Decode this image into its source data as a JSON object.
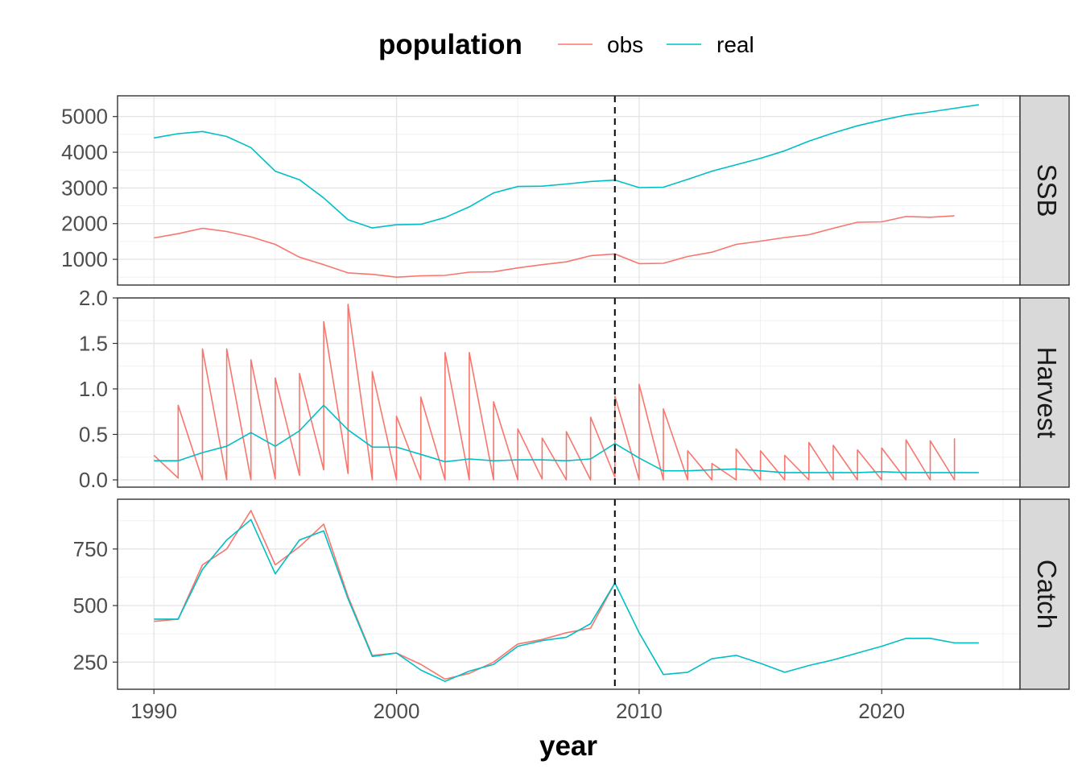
{
  "legend": {
    "title": "population",
    "entries": [
      {
        "label": "obs",
        "color": "#F8766D"
      },
      {
        "label": "real",
        "color": "#00BFC4"
      }
    ],
    "placement": "top"
  },
  "chart_data": {
    "type": "line",
    "xlabel": "year",
    "xlim": [
      1988.5,
      2025.7
    ],
    "x_ticks": [
      1990,
      2000,
      2010,
      2020
    ],
    "x_tick_labels": [
      "1990",
      "2000",
      "2010",
      "2020"
    ],
    "vline_x": 2009,
    "grid": true,
    "facets": [
      {
        "name": "SSB",
        "ylim": [
          280,
          5580
        ],
        "y_ticks": [
          1000,
          2000,
          3000,
          4000,
          5000
        ],
        "y_tick_labels": [
          "1000",
          "2000",
          "3000",
          "4000",
          "5000"
        ],
        "series": [
          {
            "name": "obs",
            "x": [
              1990,
              1991,
              1992,
              1993,
              1994,
              1995,
              1996,
              1997,
              1998,
              1999,
              2000,
              2001,
              2002,
              2003,
              2004,
              2005,
              2006,
              2007,
              2008,
              2009,
              2010,
              2011,
              2012,
              2013,
              2014,
              2015,
              2016,
              2017,
              2018,
              2019,
              2020,
              2021,
              2022,
              2023
            ],
            "y": [
              1600,
              1720,
              1870,
              1780,
              1630,
              1420,
              1060,
              850,
              620,
              580,
              500,
              540,
              550,
              640,
              650,
              760,
              850,
              930,
              1100,
              1150,
              880,
              890,
              1080,
              1200,
              1420,
              1510,
              1610,
              1690,
              1870,
              2040,
              2050,
              2200,
              2180,
              2220
            ]
          },
          {
            "name": "real",
            "x": [
              1990,
              1991,
              1992,
              1993,
              1994,
              1995,
              1996,
              1997,
              1998,
              1999,
              2000,
              2001,
              2002,
              2003,
              2004,
              2005,
              2006,
              2007,
              2008,
              2009,
              2010,
              2011,
              2012,
              2013,
              2014,
              2015,
              2016,
              2017,
              2018,
              2019,
              2020,
              2021,
              2022,
              2023,
              2024
            ],
            "y": [
              4400,
              4520,
              4580,
              4440,
              4130,
              3470,
              3230,
              2720,
              2110,
              1880,
              1970,
              1980,
              2170,
              2470,
              2860,
              3040,
              3050,
              3110,
              3180,
              3220,
              3010,
              3020,
              3240,
              3470,
              3650,
              3830,
              4040,
              4310,
              4540,
              4740,
              4900,
              5040,
              5130,
              5230,
              5330
            ]
          }
        ]
      },
      {
        "name": "Harvest",
        "ylim": [
          -0.08,
          2.0
        ],
        "y_ticks": [
          0.0,
          0.5,
          1.0,
          1.5,
          2.0
        ],
        "y_tick_labels": [
          "0.0",
          "0.5",
          "1.0",
          "1.5",
          "2.0"
        ],
        "series": [
          {
            "name": "obs",
            "sawtooth": true,
            "x": [
              1990,
              1991,
              1992,
              1993,
              1994,
              1995,
              1996,
              1997,
              1998,
              1999,
              2000,
              2001,
              2002,
              2003,
              2004,
              2005,
              2006,
              2007,
              2008,
              2009,
              2010,
              2011,
              2012,
              2013,
              2014,
              2015,
              2016,
              2017,
              2018,
              2019,
              2020,
              2021,
              2022,
              2023
            ],
            "y_start": [
              0.27,
              0.82,
              1.44,
              1.44,
              1.32,
              1.12,
              1.17,
              1.74,
              1.93,
              1.19,
              0.7,
              0.91,
              1.4,
              1.4,
              0.86,
              0.56,
              0.46,
              0.53,
              0.69,
              0.92,
              1.05,
              0.78,
              0.32,
              0.18,
              0.34,
              0.32,
              0.27,
              0.41,
              0.38,
              0.33,
              0.35,
              0.44,
              0.43,
              0.45
            ],
            "y_end": [
              0.02,
              0.0,
              0.0,
              0.0,
              0.01,
              0.05,
              0.11,
              0.07,
              0.0,
              0.0,
              0.0,
              0.0,
              0.0,
              0.0,
              0.0,
              0.01,
              0.0,
              0.0,
              0.03,
              0.0,
              0.0,
              0.0,
              0.0,
              0.0,
              0.0,
              0.0,
              0.0,
              0.0,
              0.0,
              0.0,
              0.0,
              0.0,
              0.0,
              0.0
            ]
          },
          {
            "name": "real",
            "x": [
              1990,
              1991,
              1992,
              1993,
              1994,
              1995,
              1996,
              1997,
              1998,
              1999,
              2000,
              2001,
              2002,
              2003,
              2004,
              2005,
              2006,
              2007,
              2008,
              2009,
              2010,
              2011,
              2012,
              2013,
              2014,
              2015,
              2016,
              2017,
              2018,
              2019,
              2020,
              2021,
              2022,
              2023,
              2024
            ],
            "y": [
              0.21,
              0.21,
              0.3,
              0.37,
              0.52,
              0.37,
              0.54,
              0.82,
              0.55,
              0.36,
              0.36,
              0.28,
              0.2,
              0.23,
              0.21,
              0.22,
              0.22,
              0.21,
              0.23,
              0.4,
              0.24,
              0.1,
              0.1,
              0.11,
              0.12,
              0.1,
              0.08,
              0.08,
              0.08,
              0.08,
              0.09,
              0.08,
              0.08,
              0.08,
              0.08
            ]
          }
        ]
      },
      {
        "name": "Catch",
        "ylim": [
          130,
          970
        ],
        "y_ticks": [
          250,
          500,
          750
        ],
        "y_tick_labels": [
          "250",
          "500",
          "750"
        ],
        "series": [
          {
            "name": "obs",
            "x": [
              1990,
              1991,
              1992,
              1993,
              1994,
              1995,
              1996,
              1997,
              1998,
              1999,
              2000,
              2001,
              2002,
              2003,
              2004,
              2005,
              2006,
              2007,
              2008,
              2009
            ],
            "y": [
              430,
              440,
              680,
              750,
              920,
              680,
              760,
              860,
              540,
              280,
              290,
              240,
              175,
              200,
              250,
              330,
              350,
              380,
              400,
              600
            ]
          },
          {
            "name": "real",
            "x": [
              1990,
              1991,
              1992,
              1993,
              1994,
              1995,
              1996,
              1997,
              1998,
              1999,
              2000,
              2001,
              2002,
              2003,
              2004,
              2005,
              2006,
              2007,
              2008,
              2009,
              2010,
              2011,
              2012,
              2013,
              2014,
              2015,
              2016,
              2017,
              2018,
              2019,
              2020,
              2021,
              2022,
              2023,
              2024
            ],
            "y": [
              440,
              440,
              660,
              790,
              880,
              640,
              790,
              830,
              530,
              275,
              290,
              215,
              165,
              210,
              240,
              320,
              345,
              360,
              420,
              600,
              380,
              195,
              205,
              265,
              280,
              245,
              205,
              235,
              260,
              290,
              320,
              355,
              355,
              335,
              335
            ]
          }
        ]
      }
    ]
  }
}
